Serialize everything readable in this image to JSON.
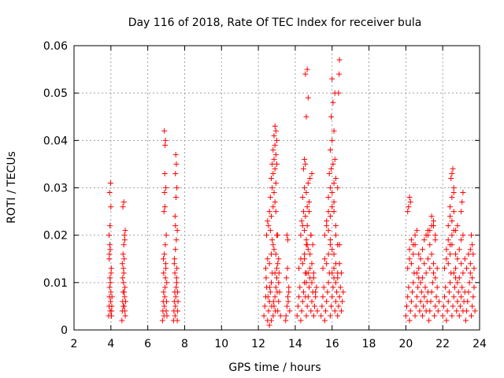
{
  "chart_data": {
    "type": "scatter",
    "title": "Day 116 of 2018, Rate Of TEC Index for receiver bula",
    "xlabel": "GPS time / hours",
    "ylabel": "ROTI / TECUs",
    "xlim": [
      2,
      24
    ],
    "ylim": [
      0,
      0.06
    ],
    "x_ticks": [
      2,
      4,
      6,
      8,
      10,
      12,
      14,
      16,
      18,
      20,
      22,
      24
    ],
    "y_ticks": [
      0,
      0.01,
      0.02,
      0.03,
      0.04,
      0.05,
      0.06
    ],
    "x_tick_labels": [
      "2",
      "4",
      "6",
      "8",
      "10",
      "12",
      "14",
      "16",
      "18",
      "20",
      "22",
      "24"
    ],
    "y_tick_labels": [
      "0",
      "0.01",
      "0.02",
      "0.03",
      "0.04",
      "0.05",
      "0.06"
    ],
    "grid": true,
    "marker": "+",
    "marker_color": "#ff0000",
    "series": [
      {
        "x": [
          3.88,
          3.9,
          3.92,
          3.93,
          3.95,
          3.96,
          3.98,
          4.0,
          4.02,
          4.03,
          4.05,
          4.06,
          3.91,
          3.94,
          3.97,
          4.01,
          4.04,
          3.9,
          3.95,
          4.0,
          3.93,
          3.98,
          4.02,
          3.92,
          3.96,
          4.6,
          4.62,
          4.64,
          4.66,
          4.68,
          4.7,
          4.72,
          4.74,
          4.76,
          4.78,
          4.8,
          4.62,
          4.66,
          4.7,
          4.74,
          4.78,
          4.64,
          4.68,
          4.72,
          4.76,
          4.65,
          4.7,
          4.75,
          4.68,
          4.72
        ],
        "y": [
          0.003,
          0.005,
          0.007,
          0.009,
          0.011,
          0.004,
          0.006,
          0.008,
          0.013,
          0.003,
          0.005,
          0.007,
          0.015,
          0.018,
          0.01,
          0.012,
          0.004,
          0.02,
          0.022,
          0.026,
          0.029,
          0.031,
          0.003,
          0.016,
          0.017,
          0.002,
          0.004,
          0.006,
          0.008,
          0.01,
          0.012,
          0.005,
          0.007,
          0.009,
          0.003,
          0.006,
          0.014,
          0.016,
          0.018,
          0.02,
          0.021,
          0.011,
          0.013,
          0.015,
          0.004,
          0.026,
          0.027,
          0.019,
          0.005,
          0.008
        ]
      },
      {
        "x": [
          6.8,
          6.82,
          6.84,
          6.86,
          6.88,
          6.9,
          6.92,
          6.94,
          6.96,
          6.98,
          7.0,
          7.02,
          7.04,
          6.85,
          6.9,
          6.95,
          7.0,
          6.88,
          6.93,
          6.98,
          6.92,
          6.96,
          6.9,
          6.94,
          6.86,
          6.97,
          7.03,
          6.91,
          7.4,
          7.42,
          7.44,
          7.46,
          7.48,
          7.5,
          7.52,
          7.54,
          7.56,
          7.58,
          7.6,
          7.62,
          7.64,
          7.45,
          7.5,
          7.55,
          7.6,
          7.48,
          7.53,
          7.58,
          7.5,
          7.55,
          7.52,
          7.47,
          7.57,
          7.44,
          7.62,
          7.5
        ],
        "y": [
          0.002,
          0.004,
          0.006,
          0.008,
          0.003,
          0.005,
          0.007,
          0.009,
          0.011,
          0.013,
          0.004,
          0.006,
          0.003,
          0.015,
          0.016,
          0.018,
          0.02,
          0.025,
          0.026,
          0.03,
          0.033,
          0.04,
          0.042,
          0.039,
          0.012,
          0.014,
          0.01,
          0.029,
          0.002,
          0.004,
          0.006,
          0.008,
          0.003,
          0.005,
          0.007,
          0.009,
          0.011,
          0.013,
          0.002,
          0.004,
          0.006,
          0.015,
          0.017,
          0.019,
          0.021,
          0.024,
          0.028,
          0.03,
          0.033,
          0.035,
          0.037,
          0.012,
          0.01,
          0.014,
          0.008,
          0.022
        ]
      },
      {
        "x": [
          12.3,
          12.35,
          12.4,
          12.45,
          12.5,
          12.55,
          12.6,
          12.65,
          12.7,
          12.75,
          12.8,
          12.85,
          12.9,
          12.95,
          13.0,
          13.05,
          13.1,
          13.15,
          13.2,
          12.4,
          12.5,
          12.6,
          12.7,
          12.8,
          12.9,
          13.0,
          13.1,
          12.45,
          12.55,
          12.65,
          12.75,
          12.85,
          12.95,
          13.05,
          12.5,
          12.6,
          12.7,
          12.8,
          12.9,
          13.0,
          12.65,
          12.75,
          12.85,
          12.95,
          12.7,
          12.8,
          12.9,
          12.75,
          12.85,
          12.95,
          12.8,
          12.9,
          13.0,
          12.85,
          12.95,
          12.9,
          13.0,
          12.95,
          13.05,
          13.1,
          12.6,
          12.7,
          12.42,
          12.52,
          12.62,
          12.72,
          12.82,
          12.92,
          13.02,
          13.12
        ],
        "y": [
          0.003,
          0.005,
          0.007,
          0.009,
          0.002,
          0.004,
          0.006,
          0.008,
          0.01,
          0.012,
          0.003,
          0.005,
          0.007,
          0.009,
          0.011,
          0.004,
          0.006,
          0.008,
          0.003,
          0.013,
          0.015,
          0.014,
          0.016,
          0.018,
          0.012,
          0.013,
          0.01,
          0.02,
          0.022,
          0.021,
          0.019,
          0.017,
          0.016,
          0.014,
          0.023,
          0.025,
          0.024,
          0.026,
          0.027,
          0.02,
          0.028,
          0.03,
          0.029,
          0.031,
          0.032,
          0.033,
          0.034,
          0.035,
          0.036,
          0.037,
          0.038,
          0.039,
          0.04,
          0.041,
          0.042,
          0.043,
          0.035,
          0.025,
          0.02,
          0.015,
          0.001,
          0.002,
          0.011,
          0.007,
          0.009,
          0.005,
          0.006,
          0.004,
          0.008,
          0.012
        ]
      },
      {
        "x": [
          13.5,
          13.55,
          13.6,
          13.65,
          13.7,
          13.52,
          13.58,
          13.62,
          13.55,
          13.6,
          13.48,
          13.65
        ],
        "y": [
          0.003,
          0.005,
          0.007,
          0.009,
          0.004,
          0.011,
          0.013,
          0.006,
          0.02,
          0.019,
          0.002,
          0.008
        ]
      },
      {
        "x": [
          14.1,
          14.15,
          14.2,
          14.25,
          14.3,
          14.35,
          14.4,
          14.45,
          14.5,
          14.55,
          14.6,
          14.65,
          14.7,
          14.75,
          14.8,
          14.85,
          14.9,
          14.95,
          15.0,
          15.05,
          15.1,
          15.15,
          15.2,
          14.2,
          14.3,
          14.4,
          14.5,
          14.6,
          14.7,
          14.8,
          14.9,
          15.0,
          15.1,
          14.3,
          14.4,
          14.5,
          14.6,
          14.7,
          14.8,
          14.9,
          15.0,
          14.35,
          14.45,
          14.55,
          14.65,
          14.75,
          14.85,
          14.95,
          14.4,
          14.5,
          14.6,
          14.7,
          14.8,
          14.9,
          14.45,
          14.55,
          14.65,
          14.75,
          14.85,
          14.5,
          14.6,
          14.7,
          14.55,
          14.65,
          14.75,
          14.5,
          14.6,
          14.55,
          14.65,
          14.6
        ],
        "y": [
          0.003,
          0.005,
          0.007,
          0.009,
          0.002,
          0.004,
          0.006,
          0.008,
          0.01,
          0.012,
          0.003,
          0.005,
          0.007,
          0.009,
          0.011,
          0.004,
          0.006,
          0.008,
          0.003,
          0.005,
          0.007,
          0.009,
          0.004,
          0.013,
          0.015,
          0.014,
          0.016,
          0.018,
          0.012,
          0.013,
          0.01,
          0.011,
          0.008,
          0.02,
          0.022,
          0.021,
          0.019,
          0.017,
          0.016,
          0.014,
          0.012,
          0.023,
          0.025,
          0.024,
          0.026,
          0.027,
          0.02,
          0.018,
          0.028,
          0.03,
          0.029,
          0.031,
          0.032,
          0.033,
          0.034,
          0.035,
          0.022,
          0.025,
          0.02,
          0.036,
          0.045,
          0.049,
          0.054,
          0.055,
          0.027,
          0.015,
          0.01,
          0.007,
          0.018,
          0.012
        ]
      },
      {
        "x": [
          15.4,
          15.45,
          15.5,
          15.55,
          15.6,
          15.65,
          15.7,
          15.75,
          15.8,
          15.85,
          15.9,
          15.95,
          16.0,
          16.05,
          16.1,
          16.15,
          16.2,
          16.25,
          16.3,
          16.35,
          16.4,
          16.45,
          16.5,
          16.55,
          16.6,
          15.5,
          15.6,
          15.7,
          15.8,
          15.9,
          16.0,
          16.1,
          16.2,
          16.3,
          16.4,
          16.5,
          15.6,
          15.7,
          15.8,
          15.9,
          16.0,
          16.1,
          16.2,
          16.3,
          16.4,
          15.7,
          15.8,
          15.9,
          16.0,
          16.1,
          16.2,
          16.3,
          15.8,
          15.9,
          16.0,
          16.1,
          16.2,
          15.85,
          15.95,
          16.05,
          16.15,
          15.9,
          16.0,
          16.1,
          15.95,
          16.05,
          16.15,
          16.0,
          16.1,
          16.2,
          16.3,
          16.35,
          16.4,
          16.38
        ],
        "y": [
          0.003,
          0.005,
          0.007,
          0.009,
          0.002,
          0.004,
          0.006,
          0.008,
          0.01,
          0.012,
          0.003,
          0.005,
          0.007,
          0.009,
          0.011,
          0.004,
          0.006,
          0.008,
          0.003,
          0.005,
          0.007,
          0.009,
          0.004,
          0.006,
          0.008,
          0.013,
          0.015,
          0.014,
          0.016,
          0.018,
          0.012,
          0.013,
          0.01,
          0.011,
          0.014,
          0.012,
          0.02,
          0.022,
          0.021,
          0.019,
          0.017,
          0.016,
          0.014,
          0.012,
          0.018,
          0.023,
          0.025,
          0.024,
          0.026,
          0.027,
          0.02,
          0.018,
          0.028,
          0.03,
          0.029,
          0.031,
          0.032,
          0.033,
          0.034,
          0.035,
          0.036,
          0.038,
          0.04,
          0.042,
          0.045,
          0.048,
          0.05,
          0.053,
          0.025,
          0.022,
          0.03,
          0.05,
          0.057,
          0.054
        ]
      },
      {
        "x": [
          20.0,
          20.05,
          20.1,
          20.15,
          20.2,
          20.25,
          20.3,
          20.35,
          20.4,
          20.45,
          20.5,
          20.55,
          20.6,
          20.65,
          20.7,
          20.75,
          20.8,
          20.85,
          20.9,
          20.95,
          21.0,
          21.05,
          21.1,
          21.15,
          21.2,
          21.25,
          21.3,
          21.35,
          21.4,
          21.45,
          21.5,
          21.55,
          21.6,
          21.65,
          21.7,
          21.75,
          21.8,
          20.1,
          20.2,
          20.3,
          20.4,
          20.5,
          20.6,
          20.7,
          20.8,
          20.9,
          21.0,
          21.1,
          21.2,
          21.3,
          21.4,
          21.5,
          21.6,
          21.7,
          20.2,
          20.3,
          20.4,
          20.5,
          20.6,
          20.7,
          20.8,
          20.9,
          21.0,
          21.1,
          21.2,
          21.3,
          21.4,
          21.5,
          21.6,
          20.1,
          20.15,
          20.2,
          20.25,
          21.2,
          21.3,
          21.4,
          21.5,
          21.6
        ],
        "y": [
          0.003,
          0.005,
          0.007,
          0.009,
          0.002,
          0.004,
          0.006,
          0.008,
          0.01,
          0.012,
          0.003,
          0.005,
          0.007,
          0.009,
          0.011,
          0.004,
          0.006,
          0.008,
          0.003,
          0.005,
          0.007,
          0.009,
          0.004,
          0.006,
          0.008,
          0.002,
          0.004,
          0.006,
          0.008,
          0.01,
          0.012,
          0.003,
          0.005,
          0.007,
          0.009,
          0.004,
          0.006,
          0.013,
          0.015,
          0.014,
          0.016,
          0.018,
          0.012,
          0.013,
          0.01,
          0.011,
          0.014,
          0.012,
          0.015,
          0.013,
          0.016,
          0.014,
          0.011,
          0.013,
          0.017,
          0.019,
          0.018,
          0.02,
          0.021,
          0.016,
          0.015,
          0.017,
          0.019,
          0.02,
          0.021,
          0.018,
          0.022,
          0.023,
          0.019,
          0.025,
          0.026,
          0.028,
          0.027,
          0.02,
          0.021,
          0.024,
          0.022,
          0.02
        ]
      },
      {
        "x": [
          22.0,
          22.05,
          22.1,
          22.15,
          22.2,
          22.25,
          22.3,
          22.35,
          22.4,
          22.45,
          22.5,
          22.55,
          22.6,
          22.65,
          22.7,
          22.75,
          22.8,
          22.85,
          22.9,
          22.95,
          23.0,
          23.05,
          23.1,
          23.15,
          23.2,
          23.25,
          23.3,
          23.35,
          23.4,
          23.45,
          23.5,
          23.55,
          23.6,
          23.65,
          23.7,
          23.75,
          22.1,
          22.2,
          22.3,
          22.4,
          22.5,
          22.6,
          22.7,
          22.8,
          22.9,
          23.0,
          23.1,
          23.2,
          23.3,
          23.4,
          23.5,
          23.6,
          23.7,
          22.2,
          22.3,
          22.4,
          22.5,
          22.6,
          22.7,
          22.8,
          22.9,
          23.0,
          23.1,
          22.3,
          22.4,
          22.5,
          22.6,
          22.7,
          22.8,
          22.4,
          22.5,
          22.6,
          22.45,
          22.55,
          22.5,
          22.6,
          23.0,
          23.05,
          23.1,
          23.5,
          23.55,
          23.6,
          23.65
        ],
        "y": [
          0.003,
          0.005,
          0.007,
          0.009,
          0.002,
          0.004,
          0.006,
          0.008,
          0.01,
          0.012,
          0.003,
          0.005,
          0.007,
          0.009,
          0.011,
          0.004,
          0.006,
          0.008,
          0.003,
          0.005,
          0.007,
          0.009,
          0.004,
          0.006,
          0.008,
          0.002,
          0.004,
          0.006,
          0.008,
          0.01,
          0.012,
          0.003,
          0.005,
          0.007,
          0.009,
          0.004,
          0.013,
          0.015,
          0.014,
          0.016,
          0.018,
          0.012,
          0.013,
          0.01,
          0.011,
          0.014,
          0.012,
          0.015,
          0.013,
          0.016,
          0.014,
          0.011,
          0.013,
          0.017,
          0.019,
          0.018,
          0.02,
          0.021,
          0.016,
          0.015,
          0.017,
          0.019,
          0.02,
          0.022,
          0.024,
          0.023,
          0.025,
          0.021,
          0.022,
          0.026,
          0.028,
          0.03,
          0.032,
          0.034,
          0.033,
          0.029,
          0.025,
          0.027,
          0.029,
          0.017,
          0.02,
          0.018,
          0.016
        ]
      }
    ]
  }
}
